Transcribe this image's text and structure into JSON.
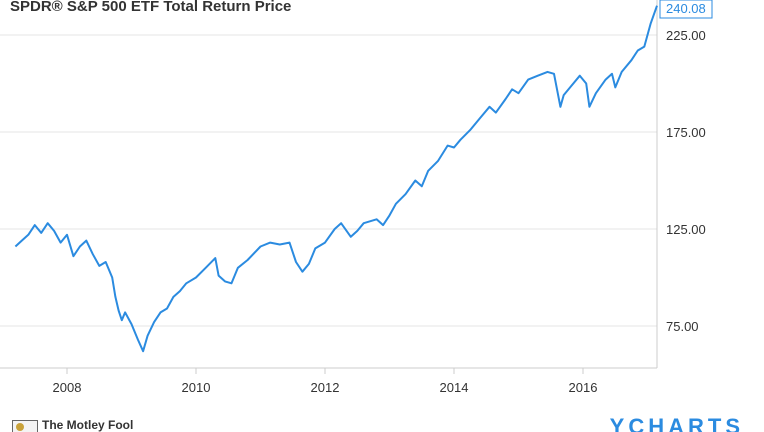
{
  "chart_data": {
    "type": "line",
    "title": "SPDR® S&P 500 ETF Total Return Price",
    "xlabel": "",
    "ylabel": "",
    "x_ticks": [
      "2008",
      "2010",
      "2012",
      "2014",
      "2016"
    ],
    "y_ticks": [
      "75.00",
      "125.00",
      "175.00",
      "225.00"
    ],
    "ylim": [
      54,
      245
    ],
    "xlim": [
      2007.2,
      2017.15
    ],
    "grid": "horizontal",
    "last_value_label": "240.08",
    "line_color": "#2b8be0",
    "series": [
      {
        "x": [
          2007.2,
          2007.3,
          2007.4,
          2007.5,
          2007.6,
          2007.7,
          2007.8,
          2007.9,
          2008.0,
          2008.1,
          2008.2,
          2008.3,
          2008.4,
          2008.5,
          2008.6,
          2008.7,
          2008.75,
          2008.8,
          2008.85,
          2008.9,
          2009.0,
          2009.1,
          2009.18,
          2009.25,
          2009.35,
          2009.45,
          2009.55,
          2009.65,
          2009.75,
          2009.85,
          2010.0,
          2010.15,
          2010.3,
          2010.35,
          2010.45,
          2010.55,
          2010.65,
          2010.8,
          2011.0,
          2011.15,
          2011.3,
          2011.45,
          2011.55,
          2011.65,
          2011.75,
          2011.85,
          2012.0,
          2012.15,
          2012.25,
          2012.4,
          2012.5,
          2012.6,
          2012.8,
          2012.9,
          2013.0,
          2013.1,
          2013.25,
          2013.4,
          2013.5,
          2013.6,
          2013.75,
          2013.9,
          2014.0,
          2014.1,
          2014.25,
          2014.4,
          2014.55,
          2014.65,
          2014.8,
          2014.9,
          2015.0,
          2015.15,
          2015.3,
          2015.45,
          2015.55,
          2015.65,
          2015.7,
          2015.8,
          2015.95,
          2016.05,
          2016.1,
          2016.2,
          2016.35,
          2016.45,
          2016.5,
          2016.6,
          2016.75,
          2016.85,
          2016.95,
          2017.05,
          2017.15
        ],
        "values": [
          116,
          119,
          122,
          127,
          123,
          128,
          124,
          118,
          122,
          111,
          116,
          119,
          112,
          106,
          108,
          100,
          90,
          83,
          78,
          82,
          76,
          68,
          62,
          70,
          77,
          82,
          84,
          90,
          93,
          97,
          100,
          105,
          110,
          101,
          98,
          97,
          105,
          109,
          116,
          118,
          117,
          118,
          108,
          103,
          107,
          115,
          118,
          125,
          128,
          121,
          124,
          128,
          130,
          127,
          132,
          138,
          143,
          150,
          147,
          155,
          160,
          168,
          167,
          171,
          176,
          182,
          188,
          185,
          192,
          197,
          195,
          202,
          204,
          206,
          205,
          188,
          194,
          198,
          204,
          200,
          188,
          195,
          202,
          205,
          198,
          206,
          212,
          217,
          219,
          231,
          240.08
        ]
      }
    ]
  },
  "footer": {
    "brand": "The Motley Fool",
    "source": "YCHARTS"
  }
}
